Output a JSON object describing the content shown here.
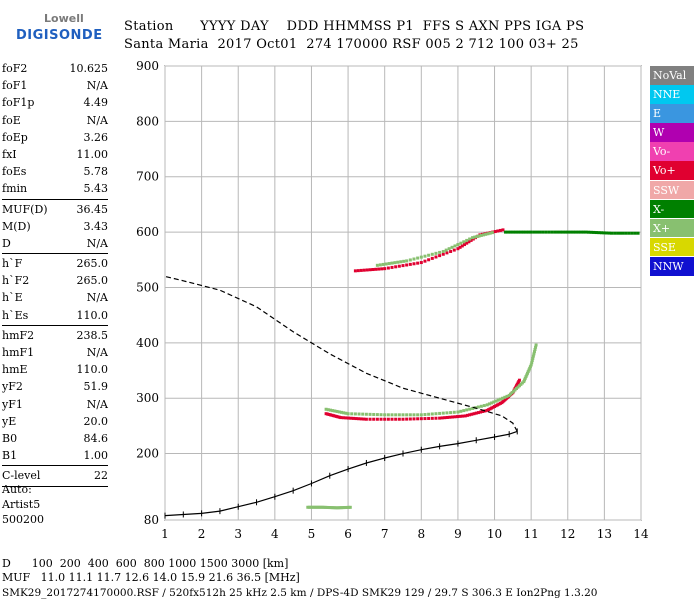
{
  "logo": {
    "line1": "Lowell",
    "line2": "DIGISONDE"
  },
  "header": {
    "line1": "Station      YYYY DAY    DDD HHMMSS P1  FFS S AXN PPS IGA PS",
    "line2": "Santa Maria  2017 Oct01  274 170000 RSF 005 2 712 100 03+ 25"
  },
  "params": [
    {
      "name": "foF2",
      "value": "10.625",
      "sep": false
    },
    {
      "name": "foF1",
      "value": "N/A",
      "sep": false
    },
    {
      "name": "foF1p",
      "value": "4.49",
      "sep": false
    },
    {
      "name": "foE",
      "value": "N/A",
      "sep": false
    },
    {
      "name": "foEp",
      "value": "3.26",
      "sep": false
    },
    {
      "name": "fxI",
      "value": "11.00",
      "sep": false
    },
    {
      "name": "foEs",
      "value": "5.78",
      "sep": false
    },
    {
      "name": "fmin",
      "value": "5.43",
      "sep": true
    },
    {
      "name": "MUF(D)",
      "value": "36.45",
      "sep": false
    },
    {
      "name": "M(D)",
      "value": "3.43",
      "sep": false
    },
    {
      "name": "D",
      "value": "N/A",
      "sep": true
    },
    {
      "name": "h`F",
      "value": "265.0",
      "sep": false
    },
    {
      "name": "h`F2",
      "value": "265.0",
      "sep": false
    },
    {
      "name": "h`E",
      "value": "N/A",
      "sep": false
    },
    {
      "name": "h`Es",
      "value": "110.0",
      "sep": true
    },
    {
      "name": "hmF2",
      "value": "238.5",
      "sep": false
    },
    {
      "name": "hmF1",
      "value": "N/A",
      "sep": false
    },
    {
      "name": "hmE",
      "value": "110.0",
      "sep": false
    },
    {
      "name": "yF2",
      "value": "51.9",
      "sep": false
    },
    {
      "name": "yF1",
      "value": "N/A",
      "sep": false
    },
    {
      "name": "yE",
      "value": "20.0",
      "sep": false
    },
    {
      "name": "B0",
      "value": "84.6",
      "sep": false
    },
    {
      "name": "B1",
      "value": "1.00",
      "sep": true
    },
    {
      "name": "C-level",
      "value": "22",
      "sep": true
    }
  ],
  "auto": {
    "line1": "Auto:",
    "line2": "Artist5",
    "line3": "500200"
  },
  "legend": [
    {
      "label": "NoVal",
      "color": "#808080"
    },
    {
      "label": "NNE",
      "color": "#00c8f0"
    },
    {
      "label": "E",
      "color": "#3a96e0"
    },
    {
      "label": "W",
      "color": "#b000b0"
    },
    {
      "label": "Vo-",
      "color": "#f040b0"
    },
    {
      "label": "Vo+",
      "color": "#e00030"
    },
    {
      "label": "SSW",
      "color": "#f0a8a8"
    },
    {
      "label": "X-",
      "color": "#008000"
    },
    {
      "label": "X+",
      "color": "#88c070"
    },
    {
      "label": "SSE",
      "color": "#d8d800"
    },
    {
      "label": "NNW",
      "color": "#1010d0"
    }
  ],
  "footer": {
    "line1": "D      100  200  400  600  800 1000 1500 3000 [km]",
    "line2": "MUF   11.0 11.1 11.7 12.6 14.0 15.9 21.6 36.5 [MHz]",
    "line3": "SMK29_2017274170000.RSF / 520fx512h 25 kHz 2.5 km / DPS-4D SMK29 129 / 29.7 S 306.3 E Ion2Png 1.3.20"
  },
  "chart_data": {
    "type": "scatter",
    "title": "",
    "xlabel": "",
    "ylabel": "",
    "xlim": [
      1,
      14
    ],
    "ylim": [
      80,
      900
    ],
    "x_ticks": [
      1,
      2,
      3,
      4,
      5,
      6,
      7,
      8,
      9,
      10,
      11,
      12,
      13,
      14
    ],
    "y_ticks": [
      80,
      200,
      300,
      400,
      500,
      600,
      700,
      800,
      900
    ],
    "grid": true,
    "series": [
      {
        "name": "Vo+",
        "color": "#e00030",
        "points": [
          [
            5.4,
            272
          ],
          [
            5.8,
            265
          ],
          [
            6.5,
            262
          ],
          [
            7.5,
            262
          ],
          [
            8.5,
            264
          ],
          [
            9.2,
            268
          ],
          [
            9.8,
            278
          ],
          [
            10.2,
            292
          ],
          [
            10.5,
            310
          ],
          [
            10.7,
            335
          ]
        ]
      },
      {
        "name": "X+",
        "color": "#88c070",
        "points": [
          [
            5.4,
            280
          ],
          [
            6.0,
            272
          ],
          [
            7.0,
            270
          ],
          [
            8.0,
            270
          ],
          [
            9.0,
            275
          ],
          [
            9.8,
            288
          ],
          [
            10.4,
            305
          ],
          [
            10.8,
            330
          ],
          [
            11.0,
            360
          ],
          [
            11.15,
            400
          ]
        ]
      },
      {
        "name": "Vo+",
        "color": "#e00030",
        "points": [
          [
            6.2,
            530
          ],
          [
            7.0,
            534
          ],
          [
            8.0,
            545
          ],
          [
            9.0,
            570
          ],
          [
            9.6,
            595
          ],
          [
            10.3,
            605
          ]
        ]
      },
      {
        "name": "X+",
        "color": "#88c070",
        "points": [
          [
            6.8,
            540
          ],
          [
            7.6,
            548
          ],
          [
            8.6,
            565
          ],
          [
            9.4,
            590
          ],
          [
            10.0,
            600
          ]
        ]
      },
      {
        "name": "X-",
        "color": "#008000",
        "points": [
          [
            10.3,
            600
          ],
          [
            11.0,
            600
          ],
          [
            11.8,
            600
          ],
          [
            12.5,
            600
          ],
          [
            13.2,
            598
          ],
          [
            14.0,
            598
          ]
        ]
      },
      {
        "name": "X+",
        "color": "#88c070",
        "points": [
          [
            4.9,
            103
          ],
          [
            5.3,
            103
          ],
          [
            5.7,
            102
          ],
          [
            6.1,
            103
          ]
        ]
      }
    ],
    "profile_solid": [
      [
        1.0,
        88
      ],
      [
        1.5,
        90
      ],
      [
        2.0,
        92
      ],
      [
        2.5,
        96
      ],
      [
        3.0,
        104
      ],
      [
        3.5,
        112
      ],
      [
        4.0,
        122
      ],
      [
        4.5,
        133
      ],
      [
        5.0,
        146
      ],
      [
        5.5,
        160
      ],
      [
        6.0,
        172
      ],
      [
        6.5,
        183
      ],
      [
        7.0,
        192
      ],
      [
        7.5,
        200
      ],
      [
        8.0,
        207
      ],
      [
        8.5,
        213
      ],
      [
        9.0,
        218
      ],
      [
        9.5,
        224
      ],
      [
        10.0,
        230
      ],
      [
        10.4,
        235
      ],
      [
        10.62,
        240
      ]
    ],
    "profile_dashed": [
      [
        10.62,
        240
      ],
      [
        10.5,
        255
      ],
      [
        10.2,
        268
      ],
      [
        9.5,
        282
      ],
      [
        8.5,
        300
      ],
      [
        7.5,
        318
      ],
      [
        6.5,
        345
      ],
      [
        5.5,
        380
      ],
      [
        4.5,
        420
      ],
      [
        3.5,
        465
      ],
      [
        2.5,
        495
      ],
      [
        1.5,
        512
      ],
      [
        1.0,
        520
      ]
    ]
  }
}
